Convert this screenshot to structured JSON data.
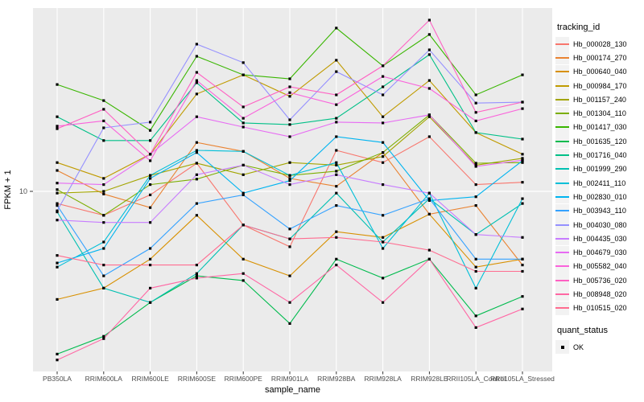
{
  "figure": {
    "y_axis": {
      "title": "FPKM + 1",
      "tick_label": "10"
    },
    "x_axis": {
      "title": "sample_name"
    },
    "legend": {
      "tracking_title": "tracking_id",
      "quant_title": "quant_status",
      "quant_ok_label": "OK"
    },
    "colors": {
      "panel_bg": "#EBEBEB",
      "grid": "#FFFFFF",
      "tick_text": "#4D4D4D",
      "title_text": "#000000",
      "legend_key_bg": "#F2F2F2",
      "marker": "#000000",
      "tick_mark": "#333333"
    }
  },
  "chart_data": {
    "type": "line",
    "title": "",
    "xlabel": "sample_name",
    "ylabel": "FPKM + 1",
    "y_scale": "log10",
    "y_ticks": [
      10
    ],
    "ylim": [
      1.4,
      80
    ],
    "grid": "vertical-per-category-plus-y10",
    "legend_position": "right",
    "marker": "black-square",
    "categories": [
      "PB350LA",
      "RRIM600LA",
      "RRIM600LE",
      "RRIM600SE",
      "RRIM600PE",
      "RRIM901LA",
      "RRIM928BA",
      "RRIM928LA",
      "RRIM928LE",
      "RRII105LA_Control",
      "RRII105LA_Stressed"
    ],
    "series": [
      {
        "name": "Hb_000028_130",
        "color": "#F8766D",
        "values": [
          8.7,
          7.6,
          9.6,
          13.8,
          6.8,
          5.3,
          16.0,
          13.9,
          18.7,
          10.8,
          11.1
        ]
      },
      {
        "name": "Hb_000174_270",
        "color": "#EA8331",
        "values": [
          12.7,
          9.7,
          8.3,
          17.5,
          15.8,
          11.6,
          10.6,
          15.6,
          7.7,
          8.5,
          4.3
        ]
      },
      {
        "name": "Hb_000640_040",
        "color": "#D89000",
        "values": [
          2.9,
          3.3,
          4.6,
          7.6,
          4.6,
          3.8,
          6.3,
          5.9,
          7.7,
          4.2,
          4.6
        ]
      },
      {
        "name": "Hb_000984_170",
        "color": "#C09B00",
        "values": [
          13.9,
          11.6,
          15.3,
          30.5,
          38.0,
          29.7,
          44.9,
          23.5,
          35.6,
          19.6,
          15.3
        ]
      },
      {
        "name": "Hb_001157_240",
        "color": "#A3A500",
        "values": [
          9.8,
          10.0,
          12.0,
          13.8,
          12.1,
          13.9,
          13.5,
          14.9,
          23.5,
          13.5,
          14.6
        ]
      },
      {
        "name": "Hb_001304_110",
        "color": "#7CAE00",
        "values": [
          10.2,
          7.6,
          10.8,
          11.5,
          13.5,
          12.0,
          12.6,
          15.6,
          24.0,
          13.8,
          13.9
        ]
      },
      {
        "name": "Hb_001417_030",
        "color": "#39B600",
        "values": [
          34.0,
          28.3,
          20.1,
          47.0,
          38.0,
          36.3,
          64.9,
          42.1,
          60.3,
          30.2,
          38.0
        ]
      },
      {
        "name": "Hb_001635_120",
        "color": "#00BB4E",
        "values": [
          1.55,
          1.9,
          2.8,
          3.8,
          3.6,
          2.2,
          4.6,
          3.7,
          4.6,
          2.4,
          3.0
        ]
      },
      {
        "name": "Hb_001716_040",
        "color": "#00C087",
        "values": [
          23.5,
          17.9,
          17.9,
          34.7,
          21.9,
          21.5,
          23.1,
          33.1,
          47.9,
          19.6,
          18.2
        ]
      },
      {
        "name": "Hb_001999_290",
        "color": "#00C0B2",
        "values": [
          7.9,
          3.3,
          2.8,
          3.9,
          6.8,
          5.8,
          9.8,
          5.6,
          9.2,
          6.1,
          8.7
        ]
      },
      {
        "name": "Hb_002411_110",
        "color": "#00BFD8",
        "values": [
          4.2,
          5.6,
          12.0,
          16.0,
          15.8,
          12.0,
          13.9,
          5.2,
          9.8,
          3.3,
          9.2
        ]
      },
      {
        "name": "Hb_002830_010",
        "color": "#00B4F0",
        "values": [
          4.4,
          5.2,
          11.6,
          15.6,
          9.8,
          11.3,
          18.7,
          17.5,
          9.0,
          9.4,
          14.2
        ]
      },
      {
        "name": "Hb_003943_110",
        "color": "#35A2FF",
        "values": [
          8.5,
          3.8,
          5.2,
          8.7,
          9.6,
          6.5,
          8.5,
          7.6,
          9.2,
          4.6,
          4.6
        ]
      },
      {
        "name": "Hb_004030_080",
        "color": "#9590FF",
        "values": [
          8.0,
          20.7,
          22.1,
          54.0,
          43.7,
          22.7,
          39.4,
          30.2,
          50.6,
          27.5,
          27.8
        ]
      },
      {
        "name": "Hb_004435_030",
        "color": "#C77CFF",
        "values": [
          7.2,
          7.0,
          7.0,
          12.1,
          13.5,
          10.8,
          12.1,
          10.8,
          9.8,
          6.1,
          5.9
        ]
      },
      {
        "name": "Hb_004679_030",
        "color": "#E76BF3",
        "values": [
          11.0,
          10.8,
          15.3,
          23.5,
          20.9,
          18.7,
          22.1,
          21.9,
          24.0,
          13.3,
          14.3
        ]
      },
      {
        "name": "Hb_005582_040",
        "color": "#FA62DB",
        "values": [
          21.1,
          22.4,
          14.2,
          35.6,
          23.1,
          31.0,
          27.0,
          37.3,
          32.5,
          22.4,
          25.8
        ]
      },
      {
        "name": "Hb_005736_020",
        "color": "#FF61C3",
        "values": [
          20.5,
          25.6,
          15.3,
          39.1,
          26.3,
          33.1,
          30.2,
          42.1,
          71.1,
          24.7,
          27.8
        ]
      },
      {
        "name": "Hb_008948_020",
        "color": "#FF67A4",
        "values": [
          1.45,
          1.85,
          3.3,
          3.7,
          3.9,
          2.8,
          4.3,
          2.8,
          4.6,
          2.1,
          2.6
        ]
      },
      {
        "name": "Hb_010515_020",
        "color": "#FF6C90",
        "values": [
          4.8,
          4.3,
          4.3,
          4.3,
          6.8,
          5.8,
          5.9,
          5.6,
          5.1,
          4.0,
          4.0
        ]
      }
    ]
  }
}
